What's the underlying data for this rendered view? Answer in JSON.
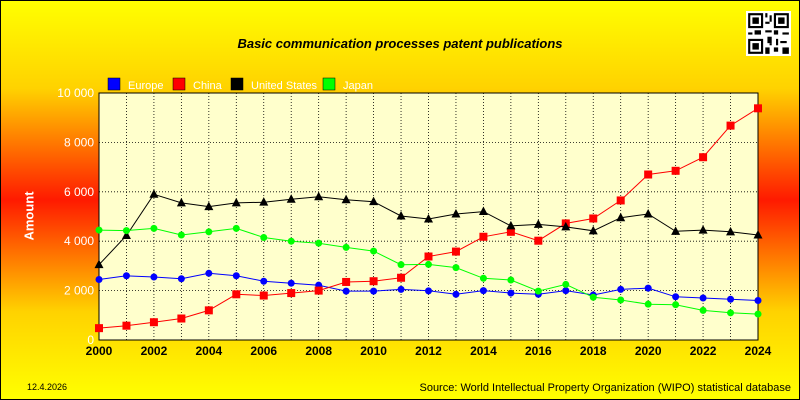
{
  "page": {
    "title": "Basic communication processes patent publications",
    "date": "12.4.2026",
    "source": "Source: World Intellectual Property Organization (WIPO) statistical database"
  },
  "chart_data": {
    "type": "line",
    "title": "Basic communication processes patent publications",
    "xlabel": "",
    "ylabel": "Amount",
    "xlim": [
      2000,
      2024
    ],
    "ylim": [
      0,
      10000
    ],
    "yticks": [
      0,
      2000,
      4000,
      6000,
      8000,
      10000
    ],
    "ytick_labels": [
      "0",
      "2 000",
      "4 000",
      "6 000",
      "8 000",
      "10 000"
    ],
    "xticks": [
      2000,
      2002,
      2004,
      2006,
      2008,
      2010,
      2012,
      2014,
      2016,
      2018,
      2020,
      2022,
      2024
    ],
    "grid": true,
    "legend_position": "top-left",
    "x": [
      2000,
      2001,
      2002,
      2003,
      2004,
      2005,
      2006,
      2007,
      2008,
      2009,
      2010,
      2011,
      2012,
      2013,
      2014,
      2015,
      2016,
      2017,
      2018,
      2019,
      2020,
      2021,
      2022,
      2023,
      2024
    ],
    "series": [
      {
        "name": "Europe",
        "color": "#0000ff",
        "marker": "circle",
        "values": [
          2450,
          2600,
          2550,
          2480,
          2700,
          2600,
          2380,
          2300,
          2220,
          1980,
          1980,
          2050,
          1990,
          1850,
          2000,
          1900,
          1850,
          2000,
          1820,
          2050,
          2100,
          1750,
          1700,
          1650,
          1600
        ]
      },
      {
        "name": "China",
        "color": "#ff0000",
        "marker": "square",
        "values": [
          480,
          580,
          720,
          870,
          1200,
          1850,
          1800,
          1900,
          2000,
          2350,
          2380,
          2520,
          3380,
          3580,
          4180,
          4380,
          4020,
          4720,
          4920,
          5650,
          6700,
          6850,
          7400,
          8680,
          9380
        ]
      },
      {
        "name": "United States",
        "color": "#000000",
        "marker": "triangle",
        "values": [
          3050,
          4230,
          5900,
          5550,
          5400,
          5550,
          5580,
          5700,
          5800,
          5680,
          5600,
          5020,
          4900,
          5100,
          5200,
          4620,
          4680,
          4580,
          4420,
          4950,
          5100,
          4400,
          4450,
          4380,
          4250
        ]
      },
      {
        "name": "Japan",
        "color": "#00ff00",
        "marker": "circle",
        "values": [
          4450,
          4430,
          4520,
          4250,
          4380,
          4520,
          4150,
          4000,
          3920,
          3750,
          3600,
          3050,
          3060,
          2930,
          2500,
          2430,
          1980,
          2250,
          1730,
          1620,
          1450,
          1430,
          1200,
          1100,
          1050
        ]
      }
    ]
  }
}
